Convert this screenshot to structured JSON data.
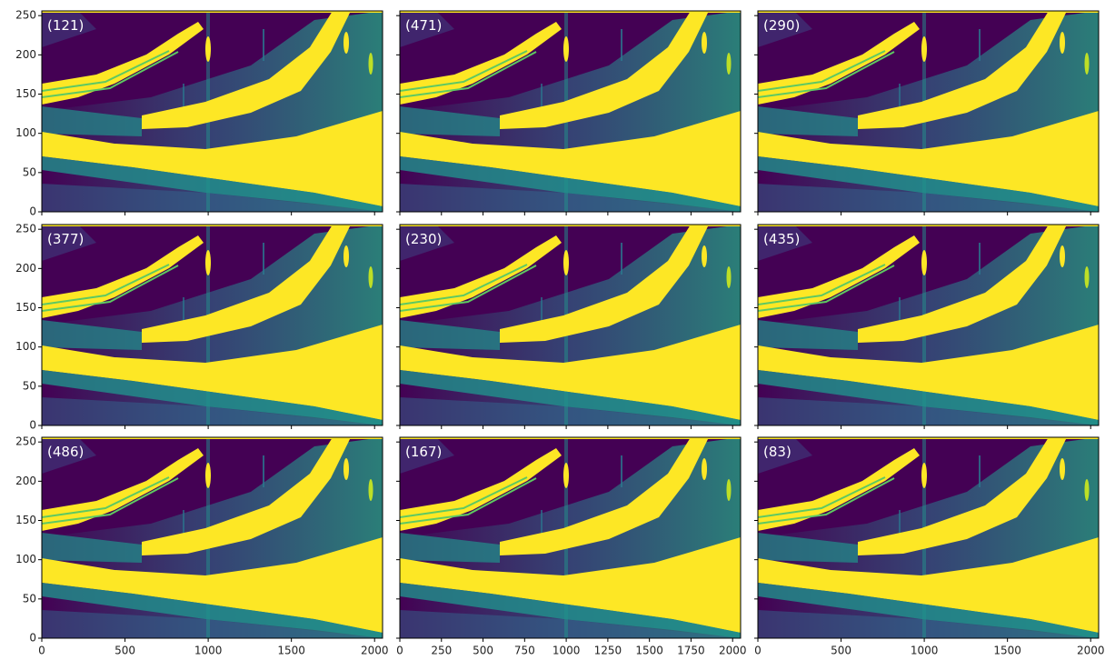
{
  "chart_data": [
    {
      "type": "image",
      "annotation": "(121)",
      "xlim": [
        0,
        2048
      ],
      "ylim": [
        0,
        256
      ],
      "xticks": [
        0,
        500,
        1000,
        1500,
        2000
      ],
      "yticks": [
        0,
        50,
        100,
        150,
        200,
        250
      ],
      "show_xticklabels": false,
      "show_yticklabels": true
    },
    {
      "type": "image",
      "annotation": "(471)",
      "xlim": [
        0,
        2048
      ],
      "ylim": [
        0,
        256
      ],
      "xticks": [
        0,
        250,
        500,
        750,
        1000,
        1250,
        1500,
        1750,
        2000
      ],
      "yticks": [
        0,
        50,
        100,
        150,
        200,
        250
      ],
      "show_xticklabels": false,
      "show_yticklabels": false
    },
    {
      "type": "image",
      "annotation": "(290)",
      "xlim": [
        0,
        2048
      ],
      "ylim": [
        0,
        256
      ],
      "xticks": [
        0,
        500,
        1000,
        1500,
        2000
      ],
      "yticks": [
        0,
        50,
        100,
        150,
        200,
        250
      ],
      "show_xticklabels": false,
      "show_yticklabels": false
    },
    {
      "type": "image",
      "annotation": "(377)",
      "xlim": [
        0,
        2048
      ],
      "ylim": [
        0,
        256
      ],
      "xticks": [
        0,
        500,
        1000,
        1500,
        2000
      ],
      "yticks": [
        0,
        50,
        100,
        150,
        200,
        250
      ],
      "show_xticklabels": false,
      "show_yticklabels": true
    },
    {
      "type": "image",
      "annotation": "(230)",
      "xlim": [
        0,
        2048
      ],
      "ylim": [
        0,
        256
      ],
      "xticks": [
        0,
        250,
        500,
        750,
        1000,
        1250,
        1500,
        1750,
        2000
      ],
      "yticks": [
        0,
        50,
        100,
        150,
        200,
        250
      ],
      "show_xticklabels": false,
      "show_yticklabels": false
    },
    {
      "type": "image",
      "annotation": "(435)",
      "xlim": [
        0,
        2048
      ],
      "ylim": [
        0,
        256
      ],
      "xticks": [
        0,
        500,
        1000,
        1500,
        2000
      ],
      "yticks": [
        0,
        50,
        100,
        150,
        200,
        250
      ],
      "show_xticklabels": false,
      "show_yticklabels": false
    },
    {
      "type": "image",
      "annotation": "(486)",
      "xlim": [
        0,
        2048
      ],
      "ylim": [
        0,
        256
      ],
      "xticks": [
        0,
        500,
        1000,
        1500,
        2000
      ],
      "yticks": [
        0,
        50,
        100,
        150,
        200,
        250
      ],
      "show_xticklabels": true,
      "show_yticklabels": true
    },
    {
      "type": "image",
      "annotation": "(167)",
      "xlim": [
        0,
        2048
      ],
      "ylim": [
        0,
        256
      ],
      "xticks": [
        0,
        250,
        500,
        750,
        1000,
        1250,
        1500,
        1750,
        2000
      ],
      "yticks": [
        0,
        50,
        100,
        150,
        200,
        250
      ],
      "show_xticklabels": true,
      "show_yticklabels": false
    },
    {
      "type": "image",
      "annotation": "(83)",
      "xlim": [
        0,
        2048
      ],
      "ylim": [
        0,
        256
      ],
      "xticks": [
        0,
        500,
        1000,
        1500,
        2000
      ],
      "yticks": [
        0,
        50,
        100,
        150,
        200,
        250
      ],
      "show_xticklabels": true,
      "show_yticklabels": false
    }
  ]
}
